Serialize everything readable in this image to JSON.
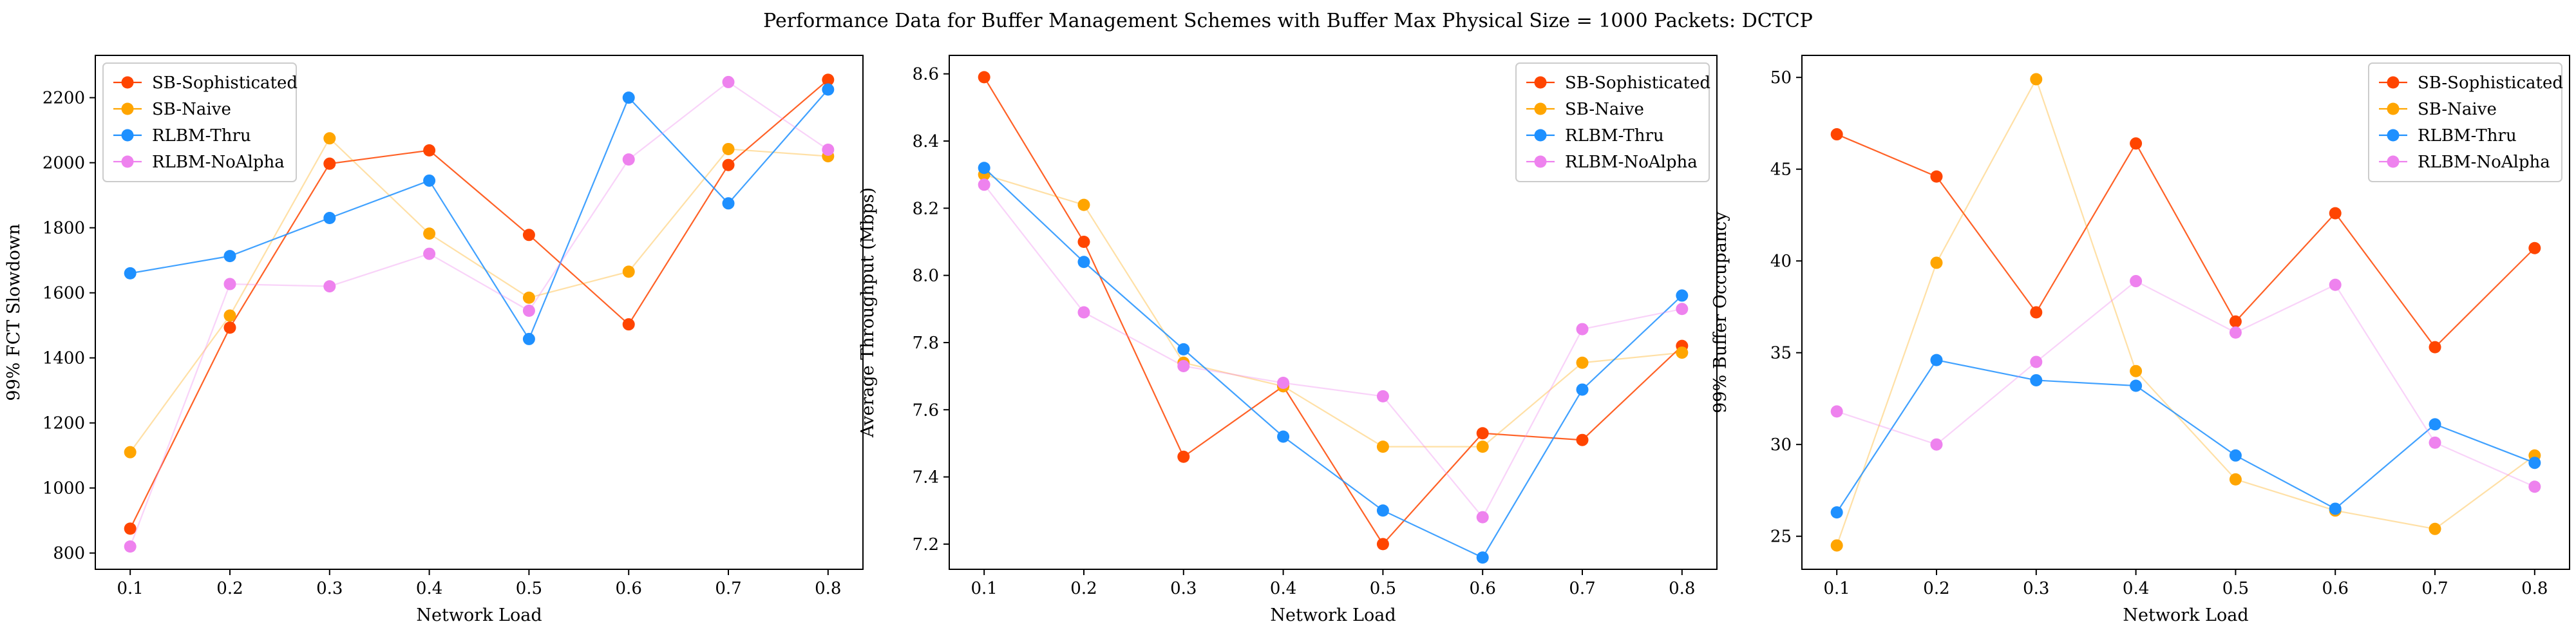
{
  "figure": {
    "title": "Performance Data for Buffer Management Schemes with Buffer Max Physical Size = 1000 Packets: DCTCP"
  },
  "colors": {
    "SB-Sophisticated": "#ff4500",
    "SB-Naive": "#ffa500",
    "RLBM-Thru": "#1e90ff",
    "RLBM-NoAlpha": "#ee82ee"
  },
  "chart_data": [
    {
      "type": "line",
      "xlabel": "Network Load",
      "ylabel": "99% FCT Slowdown",
      "x": [
        0.1,
        0.2,
        0.3,
        0.4,
        0.5,
        0.6,
        0.7,
        0.8
      ],
      "xlim": [
        0.065,
        0.835
      ],
      "ylim": [
        750,
        2330
      ],
      "yticks": [
        800,
        1000,
        1200,
        1400,
        1600,
        1800,
        2000,
        2200
      ],
      "ytick_labels": [
        "800",
        "1000",
        "1200",
        "1400",
        "1600",
        "1800",
        "2000",
        "2200"
      ],
      "legend": "top-left",
      "grid": false,
      "series": [
        {
          "name": "SB-Sophisticated",
          "values": [
            875,
            1493,
            1997,
            2038,
            1778,
            1503,
            1993,
            2255
          ]
        },
        {
          "name": "SB-Naive",
          "values": [
            1110,
            1530,
            2075,
            1782,
            1585,
            1665,
            2042,
            2020
          ]
        },
        {
          "name": "RLBM-Thru",
          "values": [
            1660,
            1713,
            1830,
            1945,
            1458,
            2200,
            1875,
            2225
          ]
        },
        {
          "name": "RLBM-NoAlpha",
          "values": [
            820,
            1627,
            1620,
            1720,
            1545,
            2010,
            2248,
            2040
          ]
        }
      ]
    },
    {
      "type": "line",
      "xlabel": "Network Load",
      "ylabel": "Average Throughput (Mbps)",
      "x": [
        0.1,
        0.2,
        0.3,
        0.4,
        0.5,
        0.6,
        0.7,
        0.8
      ],
      "xlim": [
        0.065,
        0.835
      ],
      "ylim": [
        7.125,
        8.655
      ],
      "yticks": [
        7.2,
        7.4,
        7.6,
        7.8,
        8.0,
        8.2,
        8.4,
        8.6
      ],
      "ytick_labels": [
        "7.2",
        "7.4",
        "7.6",
        "7.8",
        "8.0",
        "8.2",
        "8.4",
        "8.6"
      ],
      "legend": "top-right",
      "grid": false,
      "series": [
        {
          "name": "SB-Sophisticated",
          "values": [
            8.59,
            8.1,
            7.46,
            7.67,
            7.2,
            7.53,
            7.51,
            7.79
          ]
        },
        {
          "name": "SB-Naive",
          "values": [
            8.3,
            8.21,
            7.74,
            7.67,
            7.49,
            7.49,
            7.74,
            7.77
          ]
        },
        {
          "name": "RLBM-Thru",
          "values": [
            8.32,
            8.04,
            7.78,
            7.52,
            7.3,
            7.16,
            7.66,
            7.94
          ]
        },
        {
          "name": "RLBM-NoAlpha",
          "values": [
            8.27,
            7.89,
            7.73,
            7.68,
            7.64,
            7.28,
            7.84,
            7.9
          ]
        }
      ]
    },
    {
      "type": "line",
      "xlabel": "Network Load",
      "ylabel": "99% Buffer Occupancy",
      "x": [
        0.1,
        0.2,
        0.3,
        0.4,
        0.5,
        0.6,
        0.7,
        0.8
      ],
      "xlim": [
        0.065,
        0.835
      ],
      "ylim": [
        23.2,
        51.2
      ],
      "yticks": [
        25,
        30,
        35,
        40,
        45,
        50
      ],
      "ytick_labels": [
        "25",
        "30",
        "35",
        "40",
        "45",
        "50"
      ],
      "legend": "top-right",
      "grid": false,
      "series": [
        {
          "name": "SB-Sophisticated",
          "values": [
            46.9,
            44.6,
            37.2,
            46.4,
            36.7,
            42.6,
            35.3,
            40.7
          ]
        },
        {
          "name": "SB-Naive",
          "values": [
            24.5,
            39.9,
            49.9,
            34.0,
            28.1,
            26.4,
            25.4,
            29.4
          ]
        },
        {
          "name": "RLBM-Thru",
          "values": [
            26.3,
            34.6,
            33.5,
            33.2,
            29.4,
            26.5,
            31.1,
            29.0
          ]
        },
        {
          "name": "RLBM-NoAlpha",
          "values": [
            31.8,
            30.0,
            34.5,
            38.9,
            36.1,
            38.7,
            30.1,
            27.7
          ]
        }
      ]
    }
  ]
}
